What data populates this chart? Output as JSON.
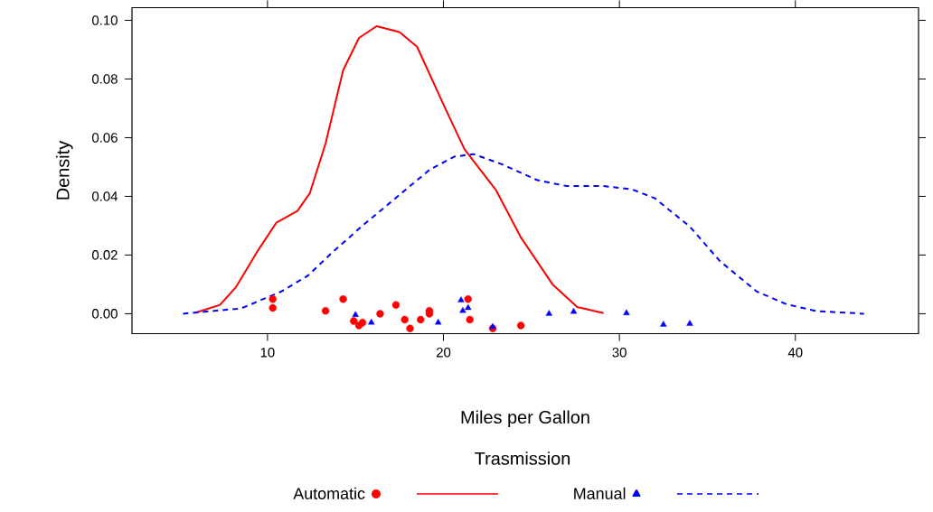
{
  "chart_data": {
    "type": "line",
    "xlabel": "Miles per Gallon",
    "ylabel": "Density",
    "legend_title": "Trasmission",
    "legend": "bottom",
    "xlim": [
      2.3,
      47.0
    ],
    "ylim": [
      -0.0068,
      0.1043
    ],
    "xticks": [
      10,
      20,
      30,
      40
    ],
    "yticks": [
      {
        "value": 0,
        "label": "0.00"
      },
      {
        "value": 0.02,
        "label": "0.02"
      },
      {
        "value": 0.04,
        "label": "0.04"
      },
      {
        "value": 0.06,
        "label": "0.06"
      },
      {
        "value": 0.08,
        "label": "0.08"
      },
      {
        "value": 0.1,
        "label": "0.10"
      }
    ],
    "series": [
      {
        "name": "Automatic",
        "color": "#ff0000",
        "line_style": "solid",
        "x": [
          6.0,
          7.3,
          8.2,
          9.4,
          10.5,
          11.7,
          12.4,
          13.3,
          14.3,
          15.2,
          16.2,
          17.5,
          18.5,
          20.1,
          21.2,
          23.0,
          24.4,
          26.2,
          27.6,
          29.1
        ],
        "values": [
          0.0005,
          0.003,
          0.009,
          0.021,
          0.031,
          0.035,
          0.041,
          0.058,
          0.083,
          0.094,
          0.098,
          0.096,
          0.091,
          0.07,
          0.056,
          0.042,
          0.026,
          0.01,
          0.0023,
          0.0002
        ]
      },
      {
        "type": "scatter",
        "color": "#ff0000",
        "marker": "circle",
        "x": [
          10.3,
          10.3,
          13.3,
          14.3,
          14.9,
          15.2,
          15.4,
          16.4,
          17.3,
          17.8,
          18.1,
          18.7,
          19.2,
          19.2,
          21.4,
          21.5,
          22.8,
          24.4
        ],
        "values": [
          0.005,
          0.002,
          0.001,
          0.005,
          -0.0025,
          -0.004,
          -0.003,
          0.0,
          0.003,
          -0.002,
          -0.005,
          -0.002,
          0.001,
          0.0,
          0.005,
          -0.002,
          -0.005,
          -0.004
        ]
      },
      {
        "name": "Manual",
        "color": "#0000ff",
        "line_style": "dashed",
        "x": [
          5.2,
          8.5,
          10.8,
          12.3,
          13.7,
          15.4,
          17.2,
          19.2,
          20.6,
          21.7,
          23.3,
          25.3,
          27.0,
          29.1,
          30.7,
          32.0,
          34.0,
          35.7,
          37.8,
          39.5,
          41.2,
          43.9
        ],
        "values": [
          0.0,
          0.0018,
          0.0076,
          0.013,
          0.021,
          0.03,
          0.039,
          0.049,
          0.0535,
          0.0544,
          0.051,
          0.0456,
          0.0435,
          0.0435,
          0.0424,
          0.0394,
          0.0297,
          0.018,
          0.0076,
          0.0032,
          0.0009,
          0.0
        ]
      },
      {
        "type": "scatter",
        "color": "#0000ff",
        "marker": "triangle",
        "x": [
          15.0,
          15.9,
          19.7,
          21.0,
          21.1,
          21.4,
          22.8,
          26.0,
          27.4,
          30.4,
          32.5,
          34.0
        ],
        "values": [
          -0.0004,
          -0.003,
          -0.003,
          0.0046,
          0.001,
          0.002,
          -0.0045,
          0.0,
          0.0007,
          0.0002,
          -0.0037,
          -0.0034
        ]
      }
    ]
  }
}
